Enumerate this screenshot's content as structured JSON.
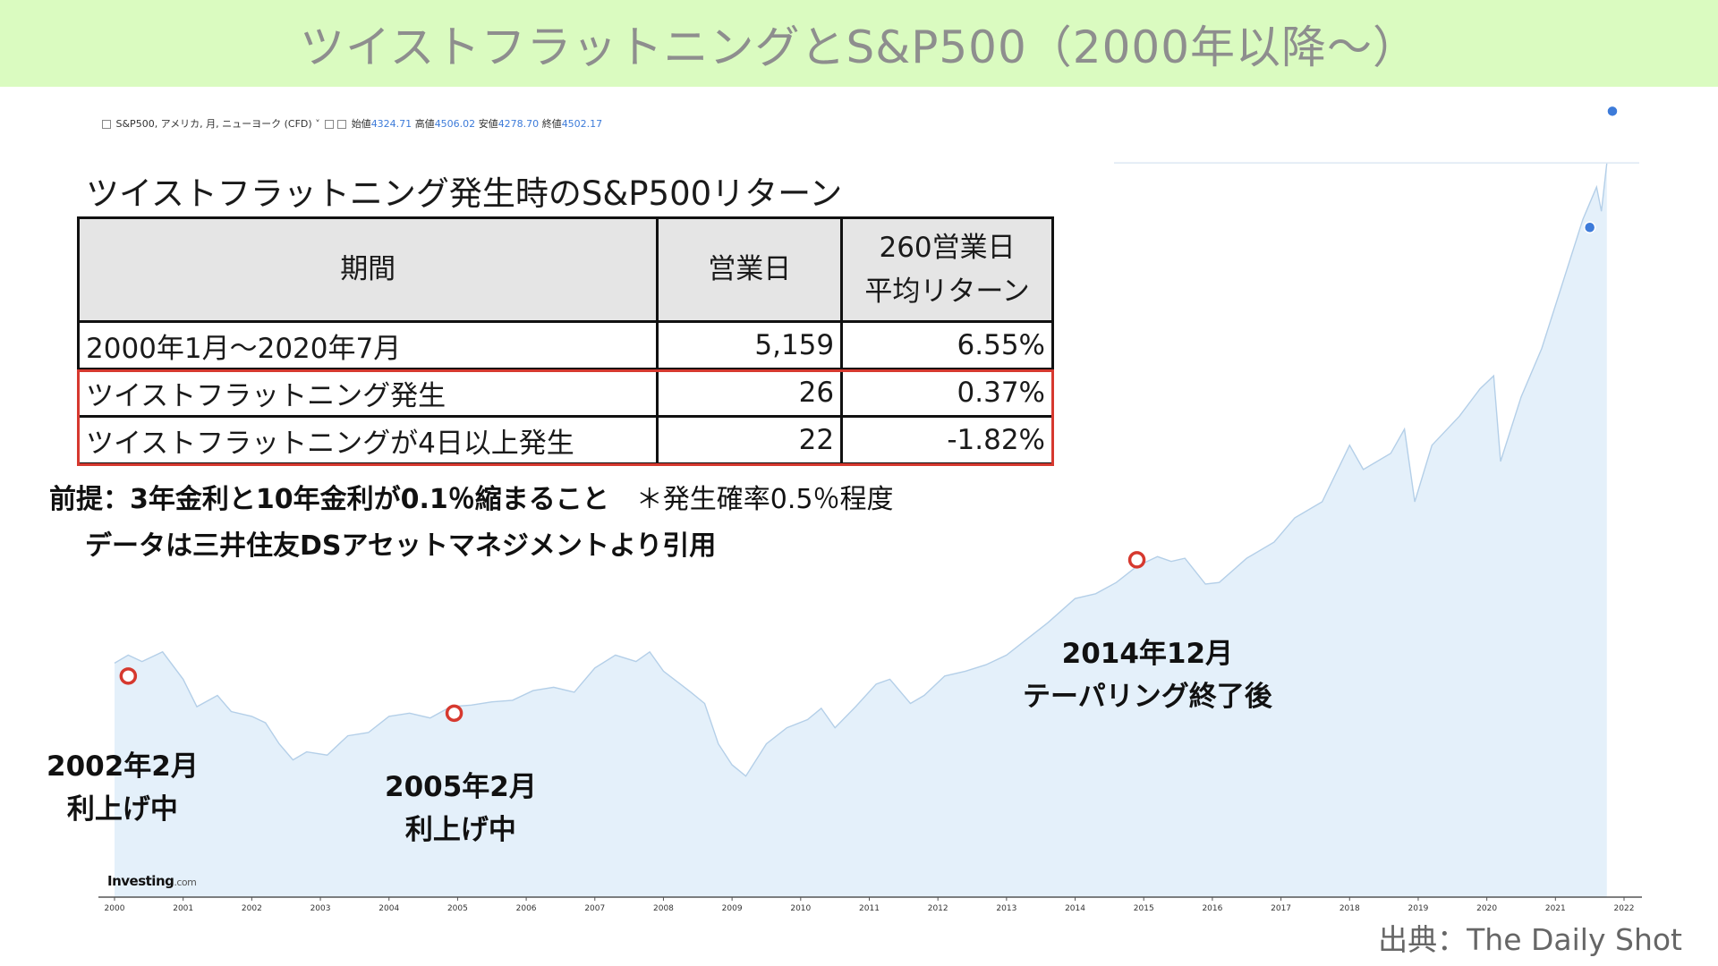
{
  "title": "ツイストフラットニングとS&P500（2000年以降〜）",
  "info_bar": {
    "instrument": "S&P500, アメリカ, 月, ニューヨーク (CFD)",
    "open_label": "始値",
    "open": "4324.71",
    "high_label": "高値",
    "high": "4506.02",
    "low_label": "安値",
    "low": "4278.70",
    "close_label": "終値",
    "close": "4502.17"
  },
  "table": {
    "title": "ツイストフラットニング発生時のS&P500リターン",
    "headers": [
      "期間",
      "営業日",
      "260営業日",
      "平均リターン"
    ],
    "rows": [
      {
        "period": "2000年1月〜2020年7月",
        "days": "5,159",
        "ret": "6.55%"
      },
      {
        "period": "ツイストフラットニング発生",
        "days": "26",
        "ret": "0.37%"
      },
      {
        "period": "ツイストフラットニングが4日以上発生",
        "days": "22",
        "ret": "-1.82%"
      }
    ]
  },
  "notes": {
    "premise": "前提：3年金利と10年金利が0.1％縮まること",
    "probability": "＊発生確率0.5％程度",
    "data_source": "データは三井住友DSアセットマネジメントより引用"
  },
  "annotations": [
    {
      "date": "2002年2月",
      "label": "利上げ中"
    },
    {
      "date": "2005年2月",
      "label": "利上げ中"
    },
    {
      "date": "2014年12月",
      "label": "テーパリング終了後"
    }
  ],
  "brand": {
    "name": "Investing",
    "suffix": ".com"
  },
  "source": "出典：The Daily Shot",
  "colors": {
    "area_fill": "#e4f0fa",
    "line": "#b4cfe8",
    "marker": "#d6392f",
    "header_bg": "#dafbc0"
  },
  "chart_data": {
    "type": "area",
    "xlim": [
      2000,
      2022
    ],
    "ylim": [
      0,
      4700
    ],
    "x_ticks": [
      "2000",
      "2001",
      "2002",
      "2003",
      "2004",
      "2005",
      "2006",
      "2007",
      "2008",
      "2009",
      "2010",
      "2011",
      "2012",
      "2013",
      "2014",
      "2015",
      "2016",
      "2017",
      "2018",
      "2019",
      "2020",
      "2021",
      "2022"
    ],
    "x": [
      2000.0,
      2000.2,
      2000.4,
      2000.7,
      2001.0,
      2001.2,
      2001.5,
      2001.7,
      2002.0,
      2002.2,
      2002.4,
      2002.6,
      2002.8,
      2003.1,
      2003.4,
      2003.7,
      2004.0,
      2004.3,
      2004.6,
      2004.9,
      2005.2,
      2005.5,
      2005.8,
      2006.1,
      2006.4,
      2006.7,
      2007.0,
      2007.3,
      2007.6,
      2007.8,
      2008.0,
      2008.4,
      2008.6,
      2008.8,
      2009.0,
      2009.2,
      2009.5,
      2009.8,
      2010.1,
      2010.3,
      2010.5,
      2010.8,
      2011.1,
      2011.3,
      2011.6,
      2011.8,
      2012.1,
      2012.4,
      2012.7,
      2013.0,
      2013.3,
      2013.6,
      2014.0,
      2014.3,
      2014.6,
      2014.9,
      2015.2,
      2015.4,
      2015.6,
      2015.9,
      2016.1,
      2016.5,
      2016.9,
      2017.2,
      2017.6,
      2018.0,
      2018.2,
      2018.6,
      2018.8,
      2018.95,
      2019.2,
      2019.6,
      2019.9,
      2020.1,
      2020.2,
      2020.5,
      2020.8,
      2021.1,
      2021.4,
      2021.6,
      2021.67,
      2021.75
    ],
    "values": [
      1450,
      1500,
      1460,
      1520,
      1350,
      1180,
      1250,
      1150,
      1120,
      1080,
      950,
      850,
      900,
      880,
      1000,
      1020,
      1120,
      1140,
      1110,
      1180,
      1190,
      1210,
      1220,
      1280,
      1300,
      1270,
      1420,
      1500,
      1460,
      1520,
      1400,
      1270,
      1200,
      950,
      820,
      750,
      950,
      1050,
      1100,
      1170,
      1050,
      1180,
      1320,
      1350,
      1200,
      1250,
      1370,
      1400,
      1440,
      1500,
      1600,
      1700,
      1850,
      1880,
      1950,
      2050,
      2110,
      2080,
      2100,
      1940,
      1950,
      2100,
      2200,
      2350,
      2450,
      2800,
      2650,
      2750,
      2900,
      2450,
      2800,
      2980,
      3150,
      3230,
      2700,
      3100,
      3400,
      3800,
      4200,
      4400,
      4250,
      4550
    ],
    "markers": [
      {
        "x": 2000.2,
        "value": 1370
      },
      {
        "x": 2004.95,
        "value": 1140
      },
      {
        "x": 2014.9,
        "value": 2090
      }
    ]
  }
}
